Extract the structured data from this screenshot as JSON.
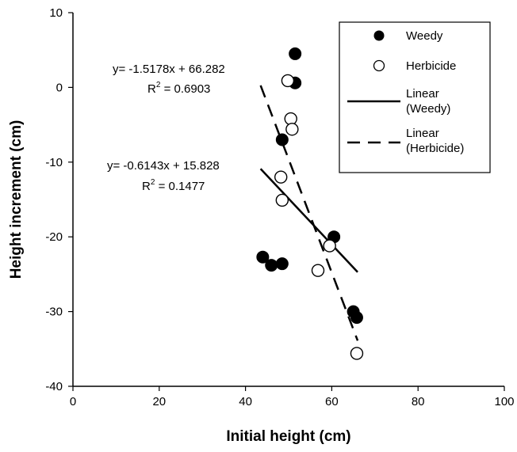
{
  "chart_data": {
    "type": "scatter",
    "xlabel": "Initial height (cm)",
    "ylabel": "Height increment (cm)",
    "xlim": [
      0,
      100
    ],
    "ylim": [
      -40,
      10
    ],
    "xticks": [
      0,
      20,
      40,
      60,
      80,
      100
    ],
    "yticks": [
      -40,
      -30,
      -20,
      -10,
      0,
      10
    ],
    "grid": false,
    "legend_position": "top-right",
    "series": [
      {
        "name": "Weedy",
        "marker": "filled-circle",
        "color": "#000000",
        "x": [
          51.5,
          51.5,
          48.5,
          44.0,
          46.0,
          48.5,
          60.5,
          65.0,
          65.8
        ],
        "y": [
          4.5,
          0.6,
          -7.0,
          -22.7,
          -23.8,
          -23.6,
          -20.0,
          -30.0,
          -30.8
        ]
      },
      {
        "name": "Herbicide",
        "marker": "open-circle",
        "color": "#000000",
        "x": [
          49.8,
          50.5,
          50.8,
          48.2,
          48.5,
          59.5,
          56.8,
          65.8
        ],
        "y": [
          0.9,
          -4.2,
          -5.6,
          -12.0,
          -15.1,
          -21.2,
          -24.5,
          -35.6
        ]
      }
    ],
    "trendlines": [
      {
        "name": "Linear (Weedy)",
        "style": "solid",
        "slope": -0.6143,
        "intercept": 15.828,
        "x_range": [
          43.5,
          66.0
        ],
        "equation": "y= -0.6143x + 15.828",
        "r2": "R2 = 0.1477"
      },
      {
        "name": "Linear (Herbicide)",
        "style": "dashed",
        "slope": -1.5178,
        "intercept": 66.282,
        "x_range": [
          43.5,
          66.0
        ],
        "equation": "y= -1.5178x + 66.282",
        "r2": "R2 = 0.6903"
      }
    ],
    "legend": {
      "weedy": "Weedy",
      "herbicide": "Herbicide",
      "linear_weedy_1": "Linear",
      "linear_weedy_2": "(Weedy)",
      "linear_herb_1": "Linear",
      "linear_herb_2": "(Herbicide)"
    },
    "annotations": {
      "herb_eq": "y= -1.5178x + 66.282",
      "herb_r2_prefix": "R",
      "herb_r2_sup": "2",
      "herb_r2_value": " = 0.6903",
      "weedy_eq": "y= -0.6143x + 15.828",
      "weedy_r2_prefix": "R",
      "weedy_r2_sup": "2",
      "weedy_r2_value": " = 0.1477"
    }
  }
}
